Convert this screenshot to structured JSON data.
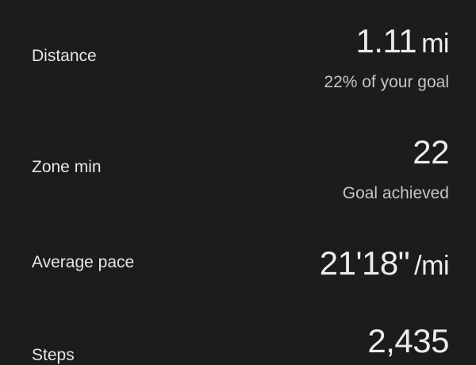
{
  "metrics": [
    {
      "label": "Distance",
      "value": "1.11",
      "unit": "mi",
      "subtext": "22% of your goal"
    },
    {
      "label": "Zone min",
      "value": "22",
      "unit": "",
      "subtext": "Goal achieved"
    },
    {
      "label": "Average pace",
      "value": "21'18\"",
      "unit": "/mi",
      "subtext": ""
    },
    {
      "label": "Steps",
      "value": "2,435",
      "unit": "",
      "subtext": ""
    }
  ]
}
